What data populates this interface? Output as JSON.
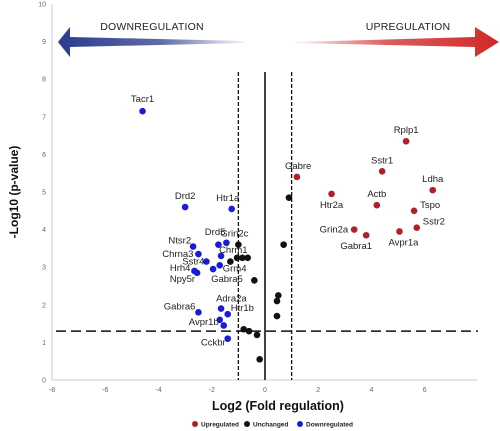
{
  "chart_data": {
    "type": "scatter",
    "xlabel": "Log2 (Fold regulation)",
    "ylabel": "-Log10 (p-value)",
    "xlim": [
      -8,
      8
    ],
    "ylim": [
      0,
      10
    ],
    "x_ticks": [
      -8,
      -6,
      -4,
      -2,
      0,
      2,
      4,
      6
    ],
    "y_ticks": [
      0,
      1,
      2,
      3,
      4,
      5,
      6,
      7,
      8,
      9,
      10
    ],
    "grid": false,
    "fold_threshold_lines": [
      -1,
      1
    ],
    "pvalue_threshold_line": 1.3,
    "legend_position": "bottom",
    "arrows": {
      "left": "DOWNREGULATION",
      "right": "UPREGULATION"
    },
    "colors": {
      "Upregulated": "#b0202a",
      "Unchanged": "#111111",
      "Downregulated": "#1a1adb",
      "arrow_left": "#2b3a8c",
      "arrow_right": "#d02828"
    },
    "series": [
      {
        "name": "Upregulated",
        "points": [
          {
            "label": "Rplp1",
            "x": 5.3,
            "y": 6.35
          },
          {
            "label": "Sstr1",
            "x": 4.4,
            "y": 5.55
          },
          {
            "label": "Ldha",
            "x": 6.3,
            "y": 5.05
          },
          {
            "label": "Gabre",
            "x": 1.2,
            "y": 5.4
          },
          {
            "label": "Htr2a",
            "x": 2.5,
            "y": 4.95
          },
          {
            "label": "Actb",
            "x": 4.2,
            "y": 4.65
          },
          {
            "label": "Tspo",
            "x": 5.6,
            "y": 4.5
          },
          {
            "label": "Grin2a",
            "x": 3.35,
            "y": 4.0
          },
          {
            "label": "Sstr2",
            "x": 5.7,
            "y": 4.05
          },
          {
            "label": "Gabra1",
            "x": 3.8,
            "y": 3.85
          },
          {
            "label": "Avpr1a",
            "x": 5.05,
            "y": 3.95
          }
        ]
      },
      {
        "name": "Unchanged",
        "points": [
          {
            "x": 0.9,
            "y": 4.85
          },
          {
            "x": -1.0,
            "y": 3.6
          },
          {
            "x": 0.7,
            "y": 3.6
          },
          {
            "x": -1.05,
            "y": 3.25
          },
          {
            "x": -0.85,
            "y": 3.25
          },
          {
            "x": -0.65,
            "y": 3.25
          },
          {
            "x": -1.3,
            "y": 3.15
          },
          {
            "x": -0.4,
            "y": 2.65
          },
          {
            "x": 0.5,
            "y": 2.25
          },
          {
            "x": 0.45,
            "y": 2.1
          },
          {
            "x": 0.45,
            "y": 1.7
          },
          {
            "x": -0.8,
            "y": 1.35
          },
          {
            "x": -0.6,
            "y": 1.3
          },
          {
            "x": -0.3,
            "y": 1.2
          },
          {
            "x": -0.2,
            "y": 0.55
          }
        ]
      },
      {
        "name": "Downregulated",
        "points": [
          {
            "label": "Tacr1",
            "x": -4.6,
            "y": 7.15
          },
          {
            "label": "Drd2",
            "x": -3.0,
            "y": 4.6
          },
          {
            "label": "Htr1a",
            "x": -1.25,
            "y": 4.55
          },
          {
            "label": "Drd5",
            "x": -1.45,
            "y": 3.65
          },
          {
            "label": "Grin2c",
            "x": -1.75,
            "y": 3.6
          },
          {
            "label": "Ntsr2",
            "x": -2.7,
            "y": 3.55
          },
          {
            "label": "Chrm1",
            "x": -1.65,
            "y": 3.3
          },
          {
            "label": "Chrna3",
            "x": -2.5,
            "y": 3.35
          },
          {
            "label": "Sstr4",
            "x": -2.2,
            "y": 3.15
          },
          {
            "label": "Grm4",
            "x": -1.7,
            "y": 3.05
          },
          {
            "label": "Hrh4",
            "x": -2.65,
            "y": 2.9
          },
          {
            "label": "Npy5r",
            "x": -2.55,
            "y": 2.85
          },
          {
            "label": "Gabra5",
            "x": -1.95,
            "y": 2.95
          },
          {
            "label": "Adra2a",
            "x": -1.65,
            "y": 1.9
          },
          {
            "label": "Gabra6",
            "x": -2.5,
            "y": 1.8
          },
          {
            "label": "Htr1b",
            "x": -1.4,
            "y": 1.75
          },
          {
            "label": "Avpr1b",
            "x": -1.7,
            "y": 1.6
          },
          {
            "label": "Cckbr",
            "x": -1.4,
            "y": 1.1
          },
          {
            "x": -1.55,
            "y": 1.45
          }
        ]
      }
    ]
  }
}
